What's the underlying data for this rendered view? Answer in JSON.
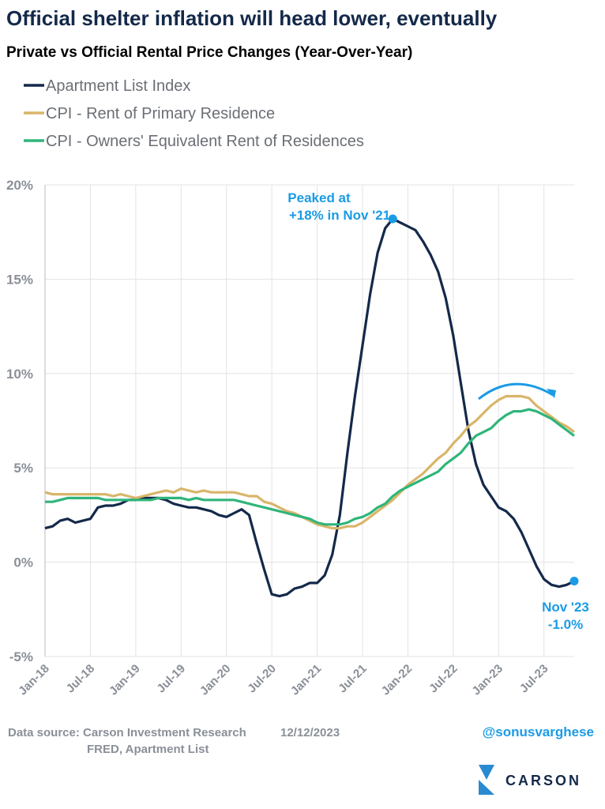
{
  "chart_data": {
    "type": "line",
    "title": "Official shelter inflation will head lower, eventually",
    "subtitle": "Private vs Official Rental Price Changes (Year-Over-Year)",
    "categories": [
      "Jan-18",
      null,
      null,
      null,
      null,
      null,
      "Jul-18",
      null,
      null,
      null,
      null,
      null,
      "Jan-19",
      null,
      null,
      null,
      null,
      null,
      "Jul-19",
      null,
      null,
      null,
      null,
      null,
      "Jan-20",
      null,
      null,
      null,
      null,
      null,
      "Jul-20",
      null,
      null,
      null,
      null,
      null,
      "Jan-21",
      null,
      null,
      null,
      null,
      null,
      "Jul-21",
      null,
      null,
      null,
      null,
      null,
      "Jan-22",
      null,
      null,
      null,
      null,
      null,
      "Jul-22",
      null,
      null,
      null,
      null,
      null,
      "Jan-23",
      null,
      null,
      null,
      null,
      null,
      "Jul-23",
      null,
      null,
      null,
      null
    ],
    "series": [
      {
        "name": "Apartment List Index",
        "color": "#14294a",
        "values": [
          1.8,
          1.9,
          2.2,
          2.3,
          2.1,
          2.2,
          2.3,
          2.9,
          3.0,
          3.0,
          3.1,
          3.3,
          3.3,
          3.4,
          3.4,
          3.4,
          3.3,
          3.1,
          3.0,
          2.9,
          2.9,
          2.8,
          2.7,
          2.5,
          2.4,
          2.6,
          2.8,
          2.5,
          1.0,
          -0.4,
          -1.7,
          -1.8,
          -1.7,
          -1.4,
          -1.3,
          -1.1,
          -1.1,
          -0.7,
          0.4,
          2.5,
          5.8,
          8.8,
          11.5,
          14.2,
          16.4,
          17.7,
          18.2,
          18.0,
          17.8,
          17.6,
          17.0,
          16.3,
          15.4,
          14.0,
          12.0,
          9.5,
          7.0,
          5.2,
          4.1,
          3.5,
          2.9,
          2.7,
          2.3,
          1.6,
          0.7,
          -0.2,
          -0.9,
          -1.2,
          -1.3,
          -1.2,
          -1.0
        ]
      },
      {
        "name": "CPI - Rent of Primary Residence",
        "color": "#d9b56a",
        "values": [
          3.7,
          3.6,
          3.6,
          3.6,
          3.6,
          3.6,
          3.6,
          3.6,
          3.6,
          3.5,
          3.6,
          3.5,
          3.4,
          3.5,
          3.6,
          3.7,
          3.8,
          3.7,
          3.9,
          3.8,
          3.7,
          3.8,
          3.7,
          3.7,
          3.7,
          3.7,
          3.6,
          3.5,
          3.5,
          3.2,
          3.1,
          2.9,
          2.7,
          2.6,
          2.4,
          2.2,
          2.0,
          1.9,
          1.8,
          1.8,
          1.9,
          1.9,
          2.1,
          2.4,
          2.7,
          3.0,
          3.3,
          3.7,
          4.1,
          4.4,
          4.7,
          5.1,
          5.5,
          5.8,
          6.3,
          6.7,
          7.2,
          7.5,
          7.9,
          8.3,
          8.6,
          8.8,
          8.8,
          8.8,
          8.7,
          8.3,
          8.0,
          7.7,
          7.4,
          7.2,
          6.9
        ]
      },
      {
        "name": "CPI - Owners' Equivalent Rent of Residences",
        "color": "#2fb57a",
        "values": [
          3.2,
          3.2,
          3.3,
          3.4,
          3.4,
          3.4,
          3.4,
          3.4,
          3.3,
          3.3,
          3.3,
          3.3,
          3.3,
          3.3,
          3.3,
          3.4,
          3.4,
          3.4,
          3.4,
          3.3,
          3.4,
          3.3,
          3.3,
          3.3,
          3.3,
          3.3,
          3.2,
          3.1,
          3.0,
          2.9,
          2.8,
          2.7,
          2.6,
          2.5,
          2.4,
          2.3,
          2.1,
          2.0,
          2.0,
          2.0,
          2.1,
          2.3,
          2.4,
          2.6,
          2.9,
          3.1,
          3.5,
          3.8,
          4.0,
          4.2,
          4.4,
          4.6,
          4.8,
          5.2,
          5.5,
          5.8,
          6.3,
          6.7,
          6.9,
          7.1,
          7.5,
          7.8,
          8.0,
          8.0,
          8.1,
          8.0,
          7.8,
          7.6,
          7.3,
          7.0,
          6.7
        ]
      }
    ],
    "ylim": [
      -5,
      20
    ],
    "yticks": [
      {
        "value": -5,
        "label": "-5%"
      },
      {
        "value": 0,
        "label": "0%"
      },
      {
        "value": 5,
        "label": "5%"
      },
      {
        "value": 10,
        "label": "10%"
      },
      {
        "value": 15,
        "label": "15%"
      },
      {
        "value": 20,
        "label": "20%"
      }
    ],
    "grid": true,
    "annotations": {
      "peak_line1": "Peaked at",
      "peak_line2": "+18% in Nov '21",
      "end_line1": "Nov '23",
      "end_line2": "-1.0%"
    },
    "source": "Data source: Carson Investment Research",
    "date": "12/12/2023",
    "source2": "FRED, Apartment List",
    "handle": "@sonusvarghese",
    "logo": "CARSON"
  }
}
